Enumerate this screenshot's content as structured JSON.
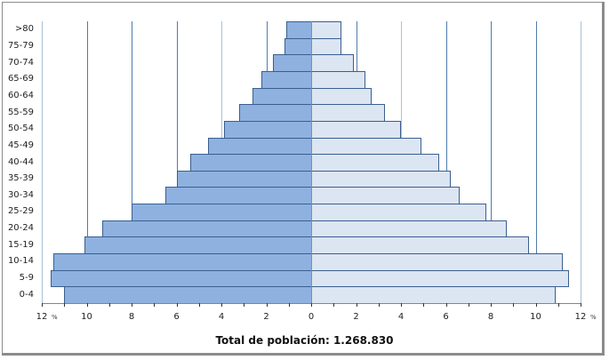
{
  "chart_data": {
    "type": "bar",
    "orientation": "horizontal",
    "subtype": "population-pyramid",
    "title": "Total de población: 1.268.830",
    "xlabel": "%",
    "ylabel": "",
    "xlim": [
      -12,
      12
    ],
    "x_ticks": [
      "12",
      "10",
      "8",
      "6",
      "4",
      "2",
      "0",
      "2",
      "4",
      "6",
      "8",
      "10",
      "12"
    ],
    "x_unit": "%",
    "grid": true,
    "legend": null,
    "categories": [
      "0-4",
      "5-9",
      "10-14",
      "15-19",
      "20-24",
      "25-29",
      "30-34",
      "35-39",
      "40-44",
      "45-49",
      "50-54",
      "55-59",
      "60-64",
      "65-69",
      "70-74",
      "75-79",
      ">80"
    ],
    "series": [
      {
        "name": "left",
        "side": "left",
        "color": "#8eb1e0",
        "values": [
          11.0,
          11.6,
          11.5,
          10.1,
          9.3,
          8.0,
          6.5,
          6.0,
          5.4,
          4.6,
          3.9,
          3.2,
          2.6,
          2.2,
          1.7,
          1.2,
          1.1
        ]
      },
      {
        "name": "right",
        "side": "right",
        "color": "#dce5f2",
        "values": [
          10.9,
          11.5,
          11.2,
          9.7,
          8.7,
          7.8,
          6.6,
          6.2,
          5.7,
          4.9,
          4.0,
          3.3,
          2.7,
          2.4,
          1.9,
          1.35,
          1.35
        ]
      }
    ]
  },
  "labels": {
    "title": "Total de población: 1.268.830",
    "pct_left": "%",
    "pct_right": "%"
  }
}
